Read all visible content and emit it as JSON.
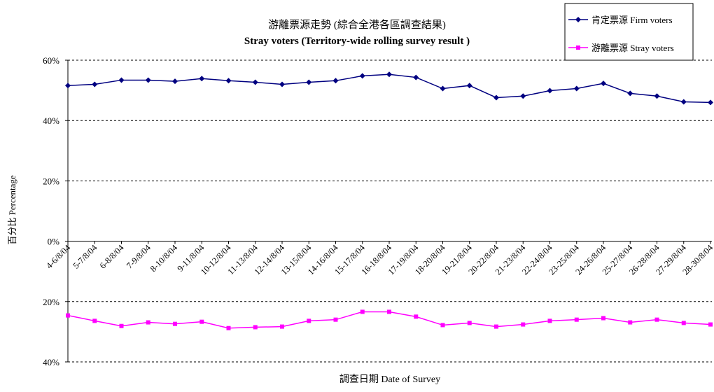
{
  "chart_data": {
    "type": "line",
    "title": "游離票源走勢 (綜合全港各區調查結果)",
    "subtitle": "Stray voters (Territory-wide rolling survey result )",
    "xlabel": "調查日期 Date of Survey",
    "ylabel": "百分比 Percentage",
    "ylim": [
      -40,
      60
    ],
    "yticks": [
      60,
      40,
      20,
      0,
      -20,
      -40
    ],
    "ytick_labels": [
      "60%",
      "40%",
      "20%",
      "0%",
      "20%",
      "40%"
    ],
    "grid": true,
    "legend_position": "top-right",
    "categories": [
      "4-6/8/04",
      "5-7/8/04",
      "6-8/8/04",
      "7-9/8/04",
      "8-10/8/04",
      "9-11/8/04",
      "10-12/8/04",
      "11-13/8/04",
      "12-14/8/04",
      "13-15/8/04",
      "14-16/8/04",
      "15-17/8/04",
      "16-18/8/04",
      "17-19/8/04",
      "18-20/8/04",
      "19-21/8/04",
      "20-22/8/04",
      "21-23/8/04",
      "22-24/8/04",
      "23-25/8/04",
      "24-26/8/04",
      "25-27/8/04",
      "26-28/8/04",
      "27-29/8/04",
      "28-30/8/04"
    ],
    "series": [
      {
        "name": "肯定票源 Firm voters",
        "color": "#000080",
        "marker": "diamond",
        "values": [
          51.6,
          52.0,
          53.4,
          53.4,
          53.0,
          53.9,
          53.2,
          52.7,
          52.0,
          52.7,
          53.2,
          54.8,
          55.3,
          54.3,
          50.6,
          51.6,
          47.6,
          48.1,
          49.9,
          50.6,
          52.3,
          49.0,
          48.1,
          46.2,
          46.0
        ]
      },
      {
        "name": "游離票源 Stray voters",
        "color": "#FF00FF",
        "marker": "square",
        "values": [
          -24.6,
          -26.4,
          -28.1,
          -26.9,
          -27.4,
          -26.7,
          -28.8,
          -28.5,
          -28.3,
          -26.4,
          -26.0,
          -23.4,
          -23.4,
          -25.0,
          -27.8,
          -27.1,
          -28.3,
          -27.6,
          -26.4,
          -26.0,
          -25.5,
          -26.9,
          -26.0,
          -27.1,
          -27.6
        ]
      }
    ]
  }
}
